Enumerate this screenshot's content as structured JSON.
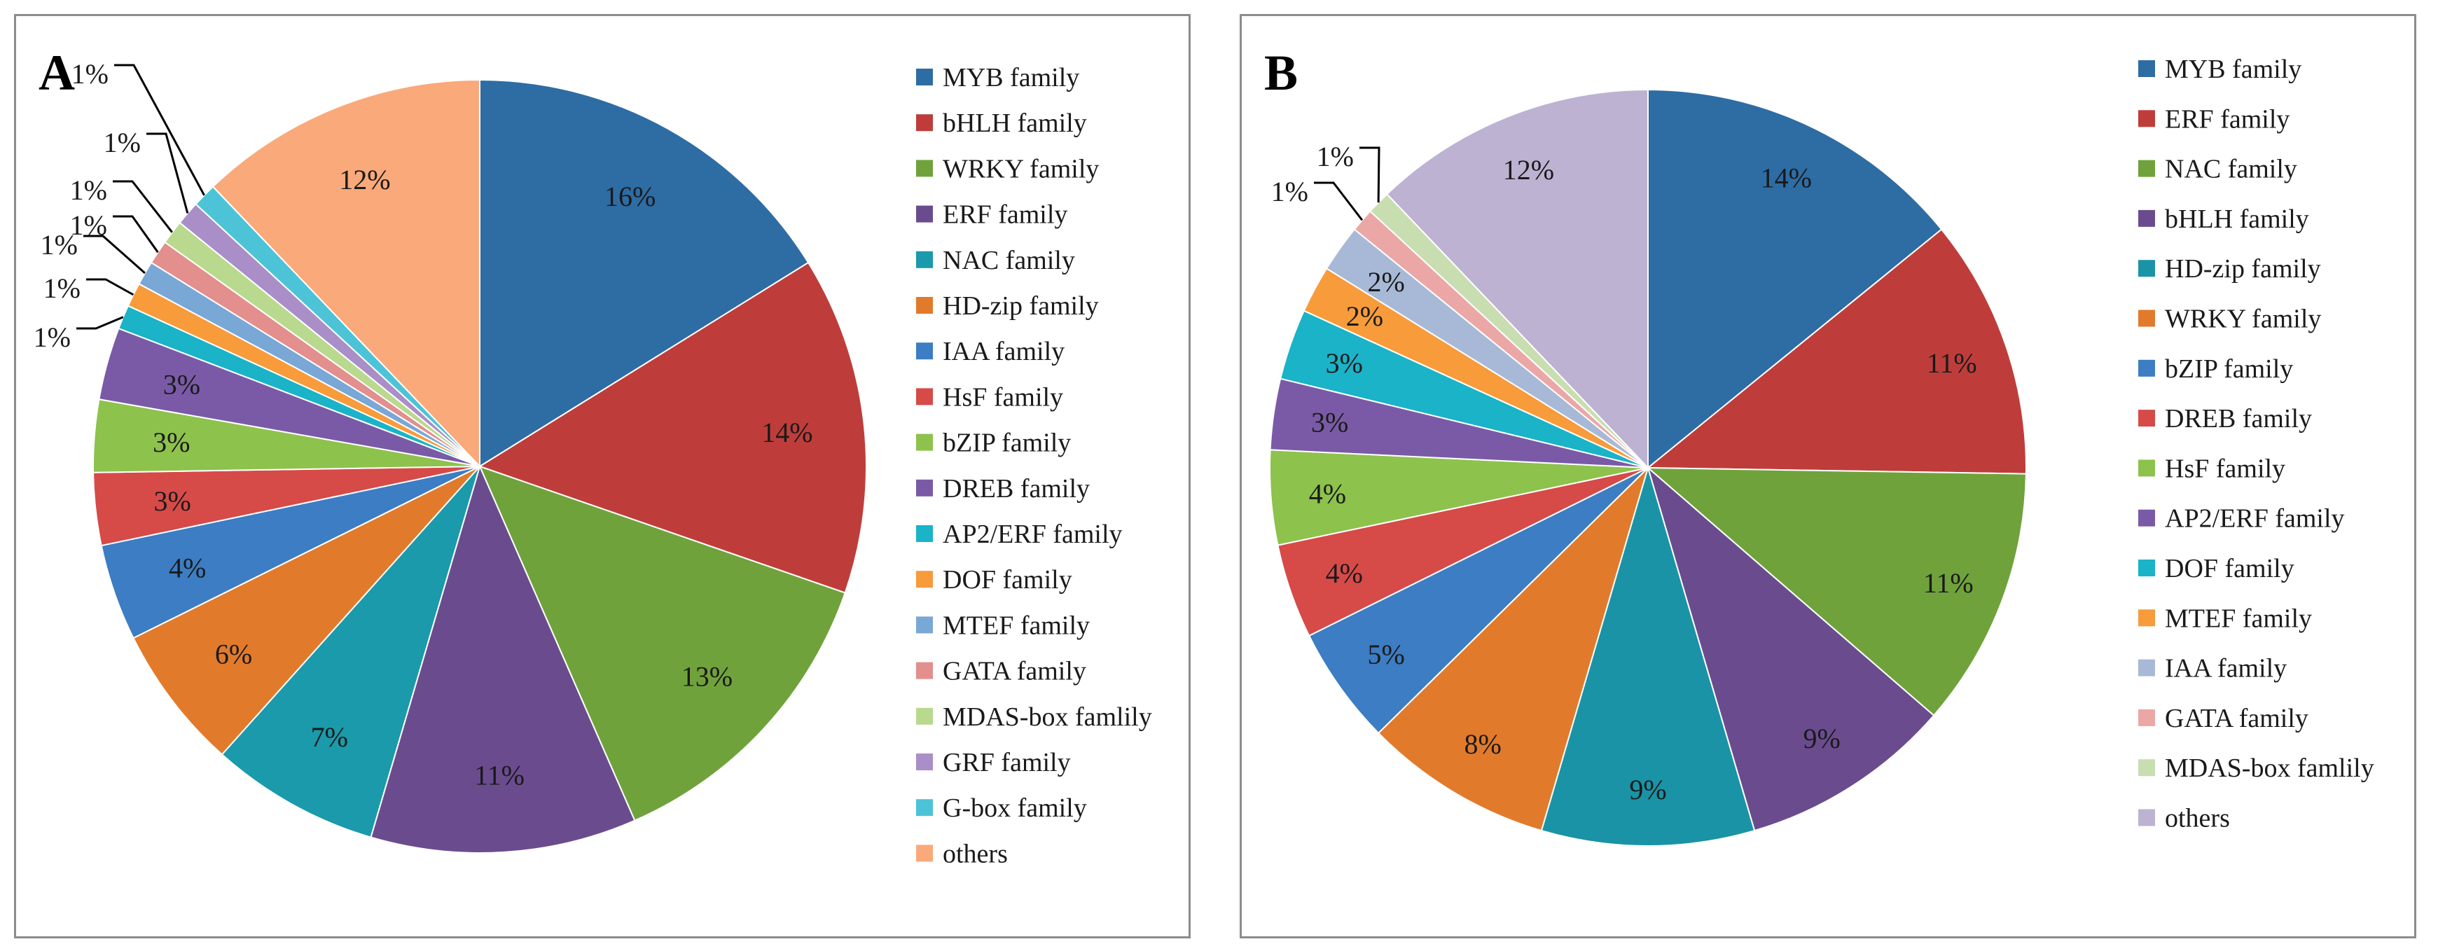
{
  "chart_data": [
    {
      "panel": "A",
      "type": "pie",
      "categories": [
        "MYB family",
        "bHLH family",
        "WRKY family",
        "ERF family",
        "NAC family",
        "HD-zip family",
        "IAA family",
        "HsF family",
        "bZIP family",
        "DREB family",
        "AP2/ERF family",
        "DOF family",
        "MTEF family",
        "GATA family",
        "MDAS-box famlily",
        "GRF family",
        "G-box family",
        "others"
      ],
      "values": [
        16,
        14,
        13,
        11,
        7,
        6,
        4,
        3,
        3,
        3,
        1,
        1,
        1,
        1,
        1,
        1,
        1,
        12
      ],
      "labels": [
        "16%",
        "14%",
        "13%",
        "11%",
        "7%",
        "6%",
        "4%",
        "3%",
        "3%",
        "3%",
        "1%",
        "1%",
        "1%",
        "1%",
        "1%",
        "1%",
        "1%",
        "12%"
      ],
      "colors": [
        "#2E6CA4",
        "#BE3D3A",
        "#70A23C",
        "#6A4C8E",
        "#1A9AAA",
        "#E27A2C",
        "#3C7DC3",
        "#D64A48",
        "#8DC24D",
        "#7A5AA6",
        "#1AB3C8",
        "#F79B3B",
        "#79A7D6",
        "#E28F8E",
        "#B9D98E",
        "#A98EC7",
        "#4DC3D7",
        "#F9A97A"
      ],
      "legend": "right"
    },
    {
      "panel": "B",
      "type": "pie",
      "categories": [
        "MYB family",
        "ERF family",
        "NAC family",
        "bHLH family",
        "HD-zip family",
        "WRKY family",
        "bZIP family",
        "DREB family",
        "HsF family",
        "AP2/ERF family",
        "DOF family",
        "MTEF family",
        "IAA family",
        "GATA family",
        "MDAS-box famlily",
        "others"
      ],
      "values": [
        14,
        11,
        11,
        9,
        9,
        8,
        5,
        4,
        4,
        3,
        3,
        2,
        2,
        1,
        1,
        12
      ],
      "labels": [
        "14%",
        "11%",
        "11%",
        "9%",
        "9%",
        "8%",
        "5%",
        "4%",
        "4%",
        "3%",
        "3%",
        "2%",
        "2%",
        "1%",
        "1%",
        "12%"
      ],
      "colors": [
        "#2E6CA4",
        "#BE3D3A",
        "#70A23C",
        "#6A4C8E",
        "#1A93A6",
        "#E27A2C",
        "#3C7DC3",
        "#D64A48",
        "#8DC24D",
        "#7A5AA6",
        "#1AB3C8",
        "#F79B3B",
        "#A7B9D6",
        "#EBA7A6",
        "#C8DEB0",
        "#BDB2D2"
      ],
      "legend": "right"
    }
  ]
}
